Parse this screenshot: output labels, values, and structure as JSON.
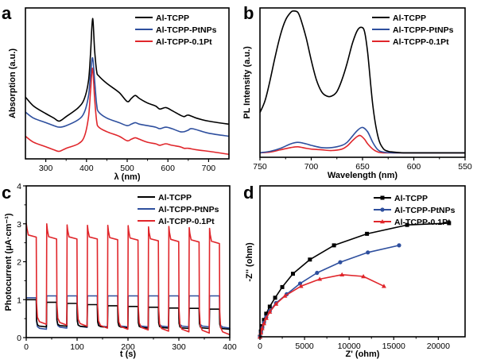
{
  "figure": {
    "panels": [
      "a",
      "b",
      "c",
      "d"
    ]
  },
  "colors": {
    "Al-TCPP": "#000000",
    "Al-TCPP-PtNPs": "#2e4f9e",
    "Al-TCPP-0.1Pt": "#e0262b"
  },
  "chart_data": [
    {
      "panel": "a",
      "type": "line",
      "title": "",
      "xlabel": "λ (nm)",
      "ylabel": "Absorption (a.u.)",
      "xlim": [
        250,
        750
      ],
      "ylim": [
        0,
        1
      ],
      "xticks": [
        300,
        400,
        500,
        600,
        700
      ],
      "yticks": [],
      "legend": "top-right",
      "series": [
        {
          "name": "Al-TCPP",
          "x": [
            250,
            270,
            300,
            320,
            333,
            350,
            380,
            395,
            405,
            410,
            415,
            420,
            425,
            430,
            450,
            480,
            500,
            510,
            520,
            530,
            550,
            570,
            580,
            595,
            610,
            630,
            640,
            650,
            670,
            700,
            750
          ],
          "y": [
            0.41,
            0.35,
            0.3,
            0.27,
            0.25,
            0.28,
            0.34,
            0.4,
            0.52,
            0.7,
            0.93,
            0.72,
            0.58,
            0.55,
            0.5,
            0.44,
            0.38,
            0.4,
            0.42,
            0.4,
            0.37,
            0.35,
            0.33,
            0.34,
            0.32,
            0.29,
            0.28,
            0.29,
            0.27,
            0.25,
            0.23
          ]
        },
        {
          "name": "Al-TCPP-PtNPs",
          "x": [
            250,
            270,
            300,
            320,
            333,
            350,
            380,
            395,
            405,
            410,
            415,
            420,
            425,
            430,
            450,
            480,
            500,
            510,
            520,
            530,
            550,
            570,
            580,
            595,
            610,
            630,
            640,
            650,
            660,
            700,
            750
          ],
          "y": [
            0.31,
            0.27,
            0.24,
            0.22,
            0.21,
            0.22,
            0.26,
            0.31,
            0.42,
            0.56,
            0.67,
            0.52,
            0.36,
            0.31,
            0.27,
            0.24,
            0.22,
            0.23,
            0.24,
            0.23,
            0.22,
            0.21,
            0.2,
            0.21,
            0.2,
            0.18,
            0.18,
            0.19,
            0.2,
            0.17,
            0.15
          ]
        },
        {
          "name": "Al-TCPP-0.1Pt",
          "x": [
            250,
            270,
            300,
            320,
            333,
            350,
            380,
            395,
            405,
            410,
            415,
            420,
            425,
            430,
            450,
            480,
            500,
            510,
            520,
            530,
            550,
            570,
            580,
            595,
            610,
            630,
            640,
            650,
            670,
            700,
            750
          ],
          "y": [
            0.15,
            0.11,
            0.08,
            0.06,
            0.05,
            0.07,
            0.1,
            0.15,
            0.28,
            0.45,
            0.6,
            0.4,
            0.25,
            0.21,
            0.18,
            0.15,
            0.12,
            0.13,
            0.14,
            0.13,
            0.11,
            0.1,
            0.09,
            0.1,
            0.09,
            0.08,
            0.07,
            0.07,
            0.06,
            0.05,
            0.03
          ]
        }
      ]
    },
    {
      "panel": "b",
      "type": "line",
      "title": "",
      "xlabel": "Wavelength (nm)",
      "ylabel": "PL Intensity (a.u.)",
      "xlim": [
        750,
        550
      ],
      "ylim": [
        0,
        1
      ],
      "xticks": [
        750,
        700,
        650,
        600,
        550
      ],
      "yticks": [],
      "legend": "top-right",
      "series": [
        {
          "name": "Al-TCPP",
          "x": [
            750,
            745,
            740,
            735,
            730,
            725,
            720,
            717,
            713,
            710,
            705,
            700,
            695,
            690,
            685,
            680,
            675,
            670,
            665,
            660,
            655,
            651,
            648,
            645,
            640,
            635,
            630,
            625,
            620,
            610,
            600,
            580,
            550
          ],
          "y": [
            0.3,
            0.38,
            0.52,
            0.68,
            0.82,
            0.92,
            0.97,
            0.98,
            0.97,
            0.92,
            0.8,
            0.65,
            0.52,
            0.44,
            0.41,
            0.41,
            0.44,
            0.52,
            0.63,
            0.76,
            0.85,
            0.87,
            0.84,
            0.7,
            0.35,
            0.14,
            0.06,
            0.04,
            0.035,
            0.03,
            0.03,
            0.03,
            0.03
          ]
        },
        {
          "name": "Al-TCPP-PtNPs",
          "x": [
            750,
            740,
            730,
            720,
            713,
            705,
            700,
            690,
            680,
            670,
            665,
            660,
            655,
            650,
            645,
            640,
            635,
            630,
            620,
            600,
            550
          ],
          "y": [
            0.03,
            0.04,
            0.06,
            0.09,
            0.1,
            0.09,
            0.08,
            0.065,
            0.065,
            0.08,
            0.1,
            0.14,
            0.18,
            0.2,
            0.17,
            0.1,
            0.05,
            0.035,
            0.03,
            0.03,
            0.03
          ]
        },
        {
          "name": "Al-TCPP-0.1Pt",
          "x": [
            750,
            740,
            730,
            720,
            713,
            705,
            700,
            690,
            680,
            670,
            665,
            660,
            655,
            652,
            648,
            645,
            640,
            635,
            630,
            620,
            600,
            550
          ],
          "y": [
            0.03,
            0.035,
            0.05,
            0.065,
            0.07,
            0.06,
            0.055,
            0.05,
            0.045,
            0.055,
            0.075,
            0.11,
            0.14,
            0.145,
            0.12,
            0.09,
            0.055,
            0.035,
            0.03,
            0.03,
            0.03,
            0.03
          ]
        }
      ]
    },
    {
      "panel": "c",
      "type": "line",
      "title": "",
      "xlabel": "t (s)",
      "ylabel": "Photocurrent (μA·cm⁻¹)",
      "xlim": [
        0,
        400
      ],
      "ylim": [
        0,
        4
      ],
      "xticks": [
        0,
        100,
        200,
        300,
        400
      ],
      "yticks": [
        0,
        1,
        2,
        3,
        4
      ],
      "legend": "top-right",
      "light_period_s": 20,
      "series": [
        {
          "name": "Al-TCPP",
          "on_levels": [
            1.0,
            0.93,
            0.9,
            0.87,
            0.84,
            0.82,
            0.8,
            0.78,
            0.77,
            0.75
          ],
          "off_levels": [
            0.28,
            0.3,
            0.28,
            0.27,
            0.26,
            0.25,
            0.25,
            0.24,
            0.24,
            0.22
          ]
        },
        {
          "name": "Al-TCPP-PtNPs",
          "on_levels": [
            1.05,
            1.1,
            1.1,
            1.1,
            1.1,
            1.1,
            1.1,
            1.1,
            1.1,
            1.1
          ],
          "off_levels": [
            0.22,
            0.25,
            0.27,
            0.28,
            0.28,
            0.28,
            0.28,
            0.28,
            0.28,
            0.25
          ]
        },
        {
          "name": "Al-TCPP-0.1Pt",
          "spike_levels": [
            3.02,
            3.0,
            2.97,
            2.96,
            2.96,
            2.95,
            2.92,
            2.93,
            2.9,
            2.88
          ],
          "on_levels": [
            2.65,
            2.6,
            2.6,
            2.6,
            2.58,
            2.57,
            2.55,
            2.53,
            2.52,
            2.48
          ],
          "off_levels": [
            0.35,
            0.33,
            0.3,
            0.25,
            0.22,
            0.2,
            0.17,
            0.15,
            0.12,
            0.08
          ]
        }
      ]
    },
    {
      "panel": "d",
      "type": "line",
      "title": "",
      "xlabel": "Z' (ohm)",
      "ylabel": "-Z'' (ohm)",
      "xlim": [
        0,
        23000
      ],
      "ylim": [
        0,
        17000
      ],
      "xticks": [
        0,
        5000,
        10000,
        15000,
        20000
      ],
      "yticks": [],
      "legend": "top-right",
      "series": [
        {
          "name": "Al-TCPP",
          "marker": "square",
          "x": [
            0,
            100,
            250,
            450,
            700,
            1100,
            1700,
            2500,
            3700,
            5600,
            8300,
            12000,
            16500,
            21200
          ],
          "y": [
            0,
            600,
            1200,
            1900,
            2600,
            3400,
            4400,
            5600,
            7100,
            8700,
            10300,
            11600,
            12600,
            12800
          ]
        },
        {
          "name": "Al-TCPP-PtNPs",
          "marker": "circle",
          "x": [
            0,
            100,
            250,
            450,
            700,
            1100,
            1800,
            3000,
            4500,
            6400,
            9000,
            12100,
            15600
          ],
          "y": [
            0,
            500,
            1000,
            1600,
            2200,
            2900,
            3800,
            4800,
            6000,
            7200,
            8400,
            9500,
            10300
          ]
        },
        {
          "name": "Al-TCPP-0.1Pt",
          "marker": "triangle",
          "x": [
            0,
            100,
            250,
            450,
            700,
            1100,
            1800,
            2800,
            4600,
            6700,
            9200,
            11600,
            13900
          ],
          "y": [
            0,
            450,
            950,
            1500,
            2100,
            2800,
            3700,
            4600,
            5700,
            6500,
            7000,
            6800,
            5700
          ]
        }
      ]
    }
  ]
}
